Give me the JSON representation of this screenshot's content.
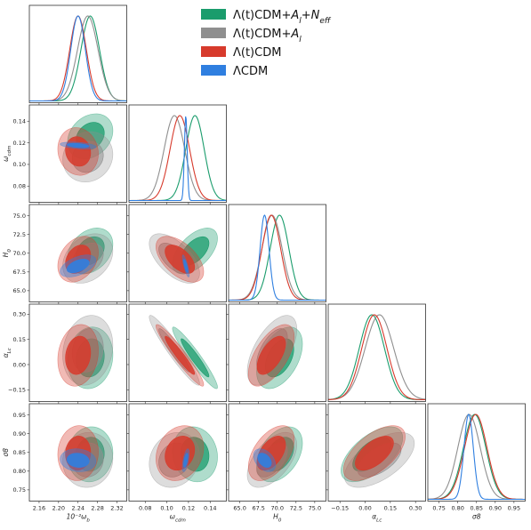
{
  "chart_data": {
    "type": "triangle-corner-plot",
    "parameters": [
      {
        "key": "wb",
        "label": "10⁻²ω_b",
        "label_main": "10⁻²ω",
        "label_sub": "b",
        "range": [
          2.14,
          2.34
        ],
        "ticks": [
          2.16,
          2.2,
          2.24,
          2.28,
          2.32
        ],
        "tick_labels": [
          "2.16",
          "2.20",
          "2.24",
          "2.28",
          "2.32"
        ]
      },
      {
        "key": "wc",
        "label": "ω_cdm",
        "label_main": "ω",
        "label_sub": "cdm",
        "range": [
          0.065,
          0.155
        ],
        "ticks": [
          0.08,
          0.1,
          0.12,
          0.14
        ],
        "tick_labels": [
          "0.08",
          "0.10",
          "0.12",
          "0.14"
        ]
      },
      {
        "key": "H0",
        "label": "H_0",
        "label_main": "H",
        "label_sub": "0",
        "range": [
          63.5,
          76.5
        ],
        "ticks": [
          65.0,
          67.5,
          70.0,
          72.5,
          75.0
        ],
        "tick_labels": [
          "65.0",
          "67.5",
          "70.0",
          "72.5",
          "75.0"
        ]
      },
      {
        "key": "alc",
        "label": "α_Lc",
        "label_main": "α",
        "label_sub": "Lc",
        "range": [
          -0.22,
          0.36
        ],
        "ticks": [
          -0.15,
          0.0,
          0.15,
          0.3
        ],
        "tick_labels": [
          "−0.15",
          "0.00",
          "0.15",
          "0.30"
        ]
      },
      {
        "key": "s8",
        "label": "σ8",
        "label_main": "σ8",
        "label_sub": "",
        "range": [
          0.72,
          0.98
        ],
        "ticks": [
          0.75,
          0.8,
          0.85,
          0.9,
          0.95
        ],
        "tick_labels": [
          "0.75",
          "0.80",
          "0.85",
          "0.90",
          "0.95"
        ]
      }
    ],
    "series": [
      {
        "name": "Λ(t)CDM+A_l+N_eff",
        "legend_main": "Λ(t)CDM+",
        "legend_math": [
          "A",
          "l",
          "+N",
          "eff"
        ],
        "color": "#1a9c6c",
        "inner_alpha": 0.75,
        "outer_alpha": 0.35,
        "mean": {
          "wb": 2.265,
          "wc": 0.126,
          "H0": 70.3,
          "alc": 0.04,
          "s8": 0.845
        },
        "sigma": {
          "wb": 0.019,
          "wc": 0.0085,
          "H0": 1.25,
          "alc": 0.075,
          "s8": 0.03
        },
        "corr": {
          "wb|wc": 0.25,
          "wb|H0": 0.3,
          "wb|alc": 0.1,
          "wb|s8": 0.05,
          "wc|H0": 0.55,
          "wc|alc": -0.95,
          "wc|s8": -0.1,
          "H0|alc": 0.45,
          "H0|s8": 0.4,
          "alc|s8": 0.6
        }
      },
      {
        "name": "Λ(t)CDM+A_l",
        "legend_main": "Λ(t)CDM+",
        "legend_math": [
          "A",
          "l",
          "",
          ""
        ],
        "color": "#8f8f8f",
        "inner_alpha": 0.55,
        "outer_alpha": 0.3,
        "mean": {
          "wb": 2.26,
          "wc": 0.107,
          "H0": 69.3,
          "alc": 0.085,
          "s8": 0.83
        },
        "sigma": {
          "wb": 0.021,
          "wc": 0.0095,
          "H0": 1.35,
          "alc": 0.085,
          "s8": 0.03
        },
        "corr": {
          "wb|wc": 0.1,
          "wb|H0": 0.3,
          "wb|alc": 0.15,
          "wb|s8": 0.05,
          "wc|H0": -0.6,
          "wc|alc": -0.95,
          "wc|s8": 0.15,
          "H0|alc": 0.6,
          "H0|s8": 0.55,
          "alc|s8": 0.6
        }
      },
      {
        "name": "Λ(t)CDM",
        "legend_main": "Λ(t)CDM",
        "legend_math": [
          "",
          "",
          "",
          ""
        ],
        "color": "#d73a2c",
        "inner_alpha": 0.85,
        "outer_alpha": 0.35,
        "mean": {
          "wb": 2.24,
          "wc": 0.112,
          "H0": 69.2,
          "alc": 0.055,
          "s8": 0.848
        },
        "sigma": {
          "wb": 0.017,
          "wc": 0.009,
          "H0": 1.25,
          "alc": 0.075,
          "s8": 0.03
        },
        "corr": {
          "wb|wc": -0.1,
          "wb|H0": 0.3,
          "wb|alc": 0.15,
          "wb|s8": 0.05,
          "wc|H0": -0.55,
          "wc|alc": -0.95,
          "wc|s8": 0.2,
          "H0|alc": 0.6,
          "H0|s8": 0.5,
          "alc|s8": 0.6
        }
      },
      {
        "name": "ΛCDM",
        "legend_main": "ΛCDM",
        "legend_math": [
          "",
          "",
          "",
          ""
        ],
        "color": "#2f7fe0",
        "inner_alpha": 0.9,
        "outer_alpha": 0.4,
        "mean": {
          "wb": 2.24,
          "wc": 0.1175,
          "H0": 68.3,
          "s8": 0.829
        },
        "sigma": {
          "wb": 0.015,
          "wc": 0.0013,
          "H0": 0.6,
          "s8": 0.0125
        },
        "corr": {
          "wb|wc": -0.4,
          "wb|H0": 0.5,
          "wb|s8": -0.1,
          "wc|H0": -0.8,
          "wc|s8": 0.6,
          "H0|s8": -0.4
        }
      }
    ],
    "legend_position": "top-right"
  }
}
